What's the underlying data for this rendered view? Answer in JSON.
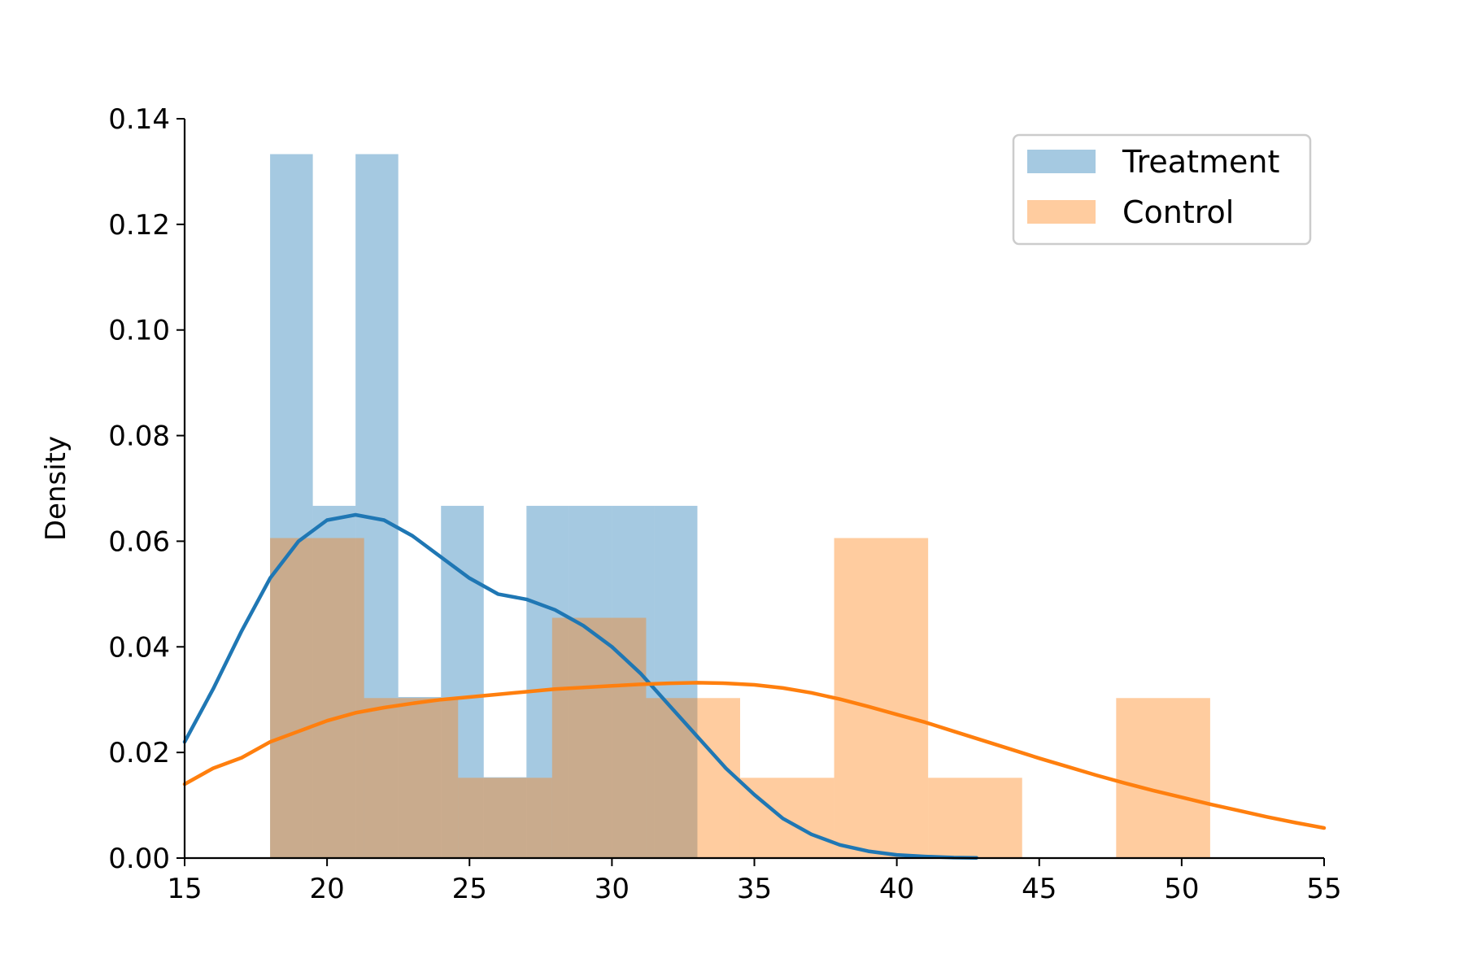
{
  "chart_data": {
    "type": "bar",
    "subtype": "histogram-with-kde",
    "title": "",
    "xlabel": "",
    "ylabel": "Density",
    "xlim": [
      15,
      55
    ],
    "ylim": [
      0,
      0.14
    ],
    "xticks": [
      15,
      20,
      25,
      30,
      35,
      40,
      45,
      50,
      55
    ],
    "xtick_labels": [
      "15",
      "20",
      "25",
      "30",
      "35",
      "40",
      "45",
      "50",
      "55"
    ],
    "yticks": [
      0,
      0.02,
      0.04,
      0.06,
      0.08,
      0.1,
      0.12,
      0.14
    ],
    "ytick_labels": [
      "0.00",
      "0.02",
      "0.04",
      "0.06",
      "0.08",
      "0.10",
      "0.12",
      "0.14"
    ],
    "grid": false,
    "legend": {
      "position": "top-right"
    },
    "series": [
      {
        "name": "Treatment",
        "kind": "histogram",
        "color": "#1f77b4",
        "opacity": 0.4,
        "bin_edges": [
          18,
          19.5,
          21,
          22.5,
          24,
          25.5,
          27,
          28.5,
          30,
          31.5,
          33
        ],
        "values": [
          0.1333,
          0.0667,
          0.1333,
          0.0305,
          0.0667,
          0.0153,
          0.0667,
          0.0667,
          0.0667,
          0.0667
        ],
        "kde": {
          "x": [
            15,
            16,
            17,
            18,
            19,
            20,
            21,
            22,
            23,
            24,
            25,
            26,
            27,
            28,
            29,
            30,
            31,
            32,
            33,
            34,
            35,
            36,
            37,
            38,
            39,
            40,
            41,
            42,
            42.8
          ],
          "y": [
            0.022,
            0.032,
            0.043,
            0.053,
            0.06,
            0.064,
            0.065,
            0.064,
            0.061,
            0.057,
            0.053,
            0.05,
            0.049,
            0.047,
            0.044,
            0.04,
            0.035,
            0.029,
            0.023,
            0.017,
            0.012,
            0.0075,
            0.0045,
            0.0025,
            0.0013,
            0.0006,
            0.0003,
            0.0001,
            5e-05
          ]
        }
      },
      {
        "name": "Control",
        "kind": "histogram",
        "color": "#ff7f0e",
        "opacity": 0.4,
        "bin_edges": [
          18,
          21.3,
          24.6,
          27.9,
          31.2,
          34.5,
          37.8,
          41.1,
          44.4,
          47.7,
          51
        ],
        "values": [
          0.0606,
          0.0303,
          0.0152,
          0.0455,
          0.0303,
          0.0152,
          0.0606,
          0.0152,
          0,
          0.0303
        ],
        "kde": {
          "x": [
            15,
            16,
            17,
            18,
            19,
            20,
            21,
            22,
            23,
            24,
            25,
            26,
            27,
            28,
            29,
            30,
            31,
            32,
            33,
            34,
            35,
            36,
            37,
            38,
            39,
            40,
            41,
            42,
            43,
            44,
            45,
            46,
            47,
            48,
            49,
            50,
            51,
            52,
            53,
            54,
            55
          ],
          "y": [
            0.014,
            0.017,
            0.019,
            0.022,
            0.024,
            0.026,
            0.0275,
            0.0285,
            0.0293,
            0.03,
            0.0305,
            0.031,
            0.0315,
            0.032,
            0.0323,
            0.0326,
            0.0329,
            0.0331,
            0.0332,
            0.0331,
            0.0328,
            0.0322,
            0.0313,
            0.0301,
            0.0287,
            0.0272,
            0.0257,
            0.024,
            0.0223,
            0.0206,
            0.0189,
            0.0173,
            0.0157,
            0.0142,
            0.0128,
            0.0115,
            0.0102,
            0.009,
            0.0078,
            0.0067,
            0.0057
          ]
        }
      }
    ]
  }
}
